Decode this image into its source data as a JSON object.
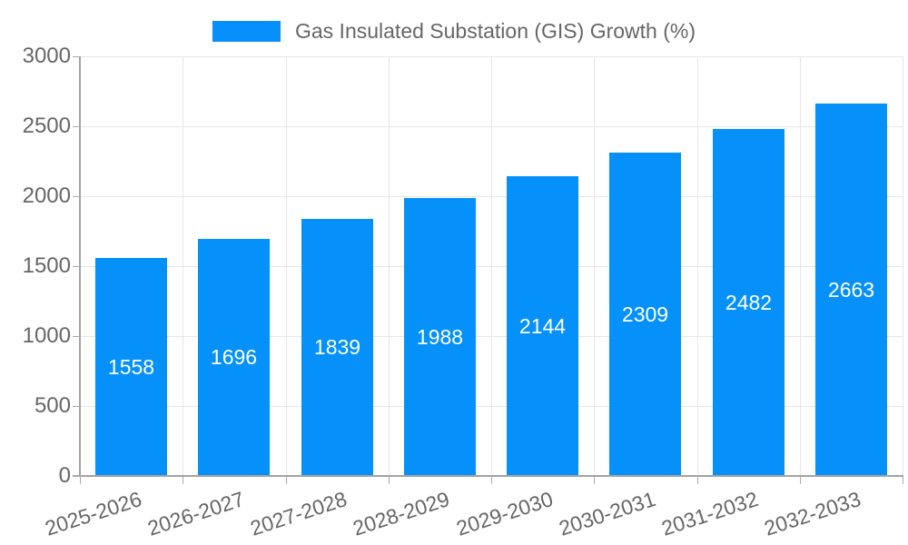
{
  "legend": {
    "label": "Gas Insulated Substation (GIS) Growth (%)"
  },
  "colors": {
    "bar": "#0591f9",
    "grid": "#e6e6e6",
    "axis": "#a3a3a3",
    "tick_text": "#666666",
    "legend_text": "#666666",
    "value_label": "#ffffff"
  },
  "chart_data": {
    "type": "bar",
    "title": "",
    "categories": [
      "2025-2026",
      "2026-2027",
      "2027-2028",
      "2028-2029",
      "2029-2030",
      "2030-2031",
      "2031-2032",
      "2032-2033"
    ],
    "values": [
      1558,
      1696,
      1839,
      1988,
      2144,
      2309,
      2482,
      2663
    ],
    "legend_label": "Gas Insulated Substation (GIS) Growth (%)",
    "legend_position": "top",
    "xlabel": "",
    "ylabel": "",
    "ylim": [
      0,
      3000
    ],
    "yticks": [
      0,
      500,
      1000,
      1500,
      2000,
      2500,
      3000
    ],
    "grid": true,
    "bar_labels_inside": true,
    "x_tick_rotation_deg": -18
  }
}
